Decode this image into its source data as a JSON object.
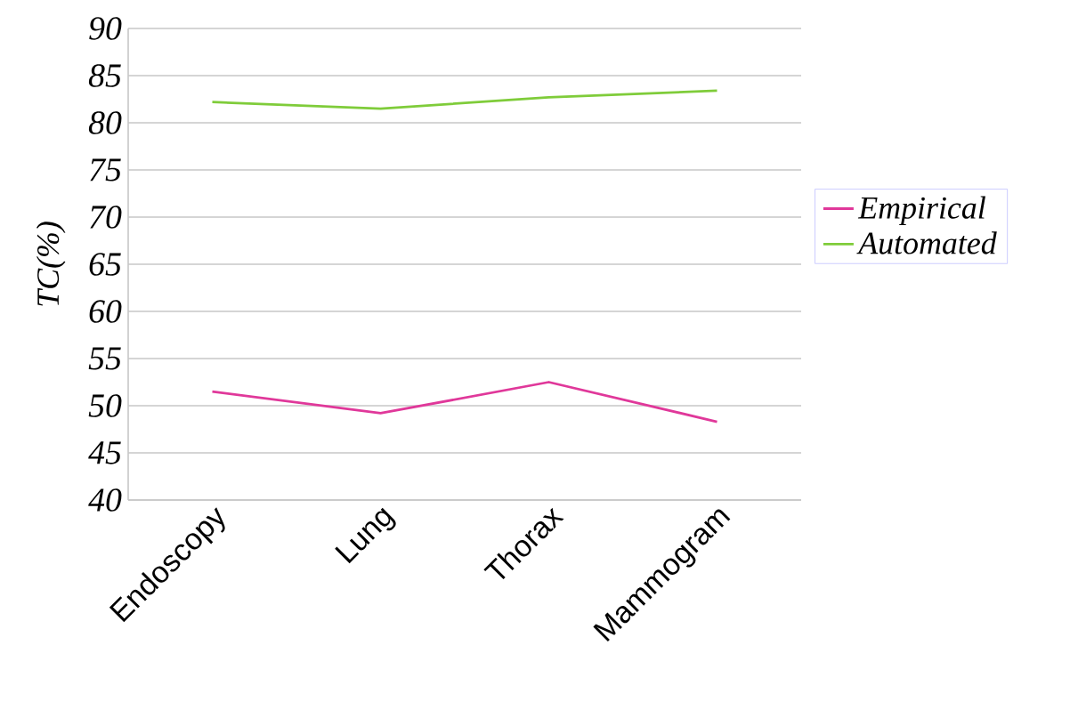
{
  "chart_data": {
    "type": "line",
    "ylabel": "TC(%)",
    "categories": [
      "Endoscopy",
      "Lung",
      "Thorax",
      "Mammogram"
    ],
    "series": [
      {
        "name": "Empirical",
        "color": "#e0389a",
        "values": [
          51.5,
          49.2,
          52.5,
          48.3
        ]
      },
      {
        "name": "Automated",
        "color": "#7fcc3a",
        "values": [
          82.2,
          81.5,
          82.7,
          83.4
        ]
      }
    ],
    "ylim": [
      40,
      90
    ],
    "yticks": [
      40,
      45,
      50,
      55,
      60,
      65,
      70,
      75,
      80,
      85,
      90
    ],
    "grid": "y",
    "legend": "right",
    "marker": "none",
    "line_style": "solid"
  }
}
